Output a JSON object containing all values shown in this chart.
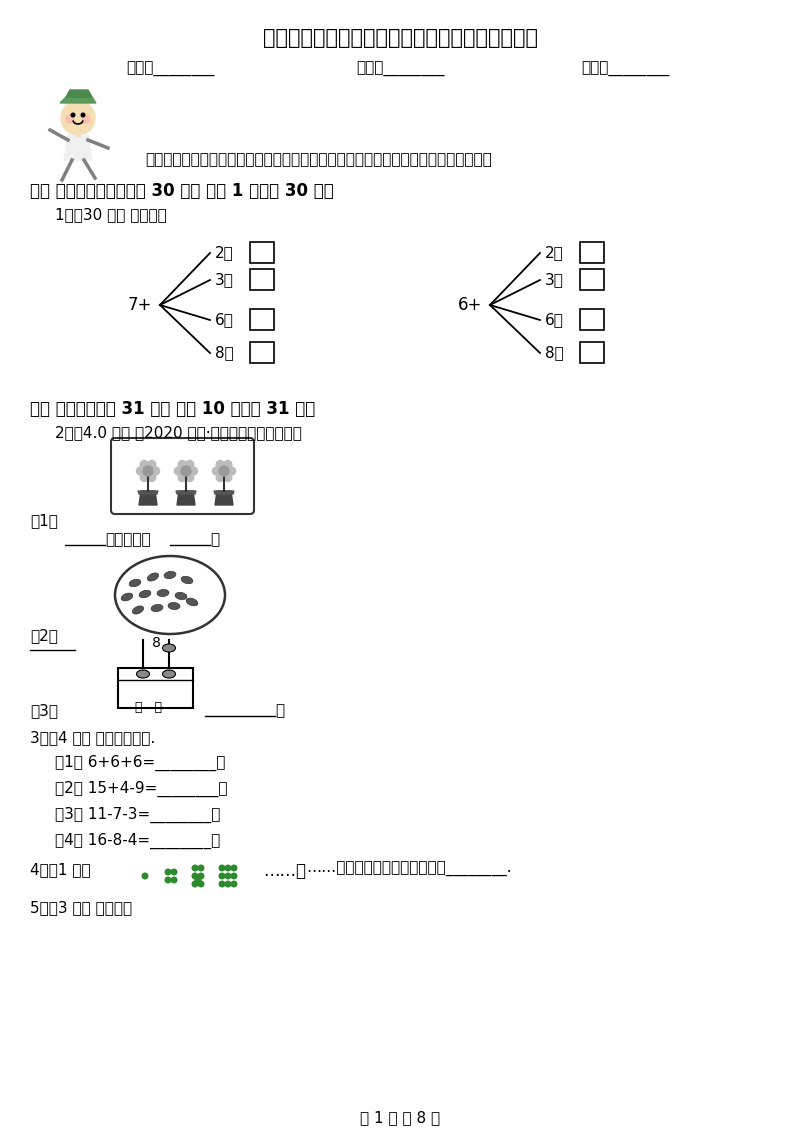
{
  "title": "广西壮族自治区一年级上学期数学期末试卷（二）",
  "header_fields": [
    "姓名：________",
    "班级：________",
    "成绩：________"
  ],
  "intro": "小朋友，带上你一段时间的学习成果，一起来做个自我检测吧，相信你一定是最棒的！",
  "section1_title": "一、 直接写出得数。（共 30 分） （共 1 题；共 30 分）",
  "q1_label": "1．（30 分） 算一算。",
  "tree1_base": "7+",
  "tree1_branches": [
    "2＝",
    "3＝",
    "6＝",
    "8＝"
  ],
  "tree2_base": "6+",
  "tree2_branches": [
    "2＝",
    "3＝",
    "6＝",
    "8＝"
  ],
  "section2_title": "二、 填空题。（共 31 分） （共 10 题；共 31 分）",
  "q2_label": "2．（4.0 分） （2020 一上·尖草坪期末）看图写数",
  "q2_sub1": "（1）",
  "q2_sub1_line": "________盆花，一共________朵",
  "q2_sub2": "（2）",
  "q2_sub3": "（3）",
  "q3_label": "3．（4 分） 直接写出结果.",
  "q3_items": [
    "（1） 6+6+6=________；",
    "（2） 15+4-9=________；",
    "（3） 11-7-3=________；",
    "（4） 16-8-4=________；"
  ],
  "q4_label": "4．（1 分）",
  "q4_text": "……，第五个点阵中点的个数是________.",
  "q5_label": "5．（3 分） 算一算。",
  "footer": "第 1 页 共 8 页",
  "bg_color": "#ffffff",
  "text_color": "#000000",
  "dot_color": "#2d8a2d"
}
